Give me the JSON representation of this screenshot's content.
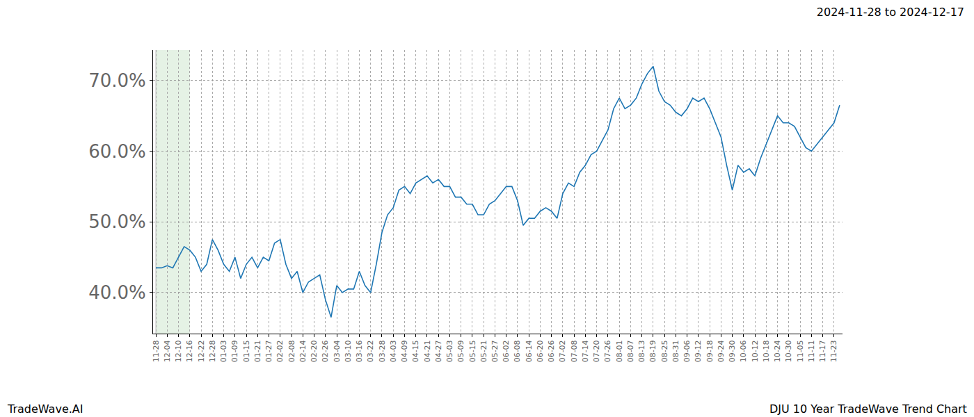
{
  "chart_data": {
    "type": "line",
    "title": "2024-11-28 to 2024-12-17",
    "annotations": [
      "TradeWave.AI",
      "DJU 10 Year TradeWave Trend Chart"
    ],
    "categories": [
      "11-28",
      null,
      "12-04",
      null,
      "12-10",
      null,
      "12-16",
      null,
      "12-22",
      null,
      "12-28",
      null,
      "01-03",
      null,
      "01-09",
      null,
      "01-15",
      null,
      "01-21",
      null,
      "01-27",
      null,
      "02-02",
      null,
      "02-08",
      null,
      "02-14",
      null,
      "02-20",
      null,
      "02-26",
      null,
      "03-04",
      null,
      "03-10",
      null,
      "03-16",
      null,
      "03-22",
      null,
      "03-28",
      null,
      "04-03",
      null,
      "04-09",
      null,
      "04-15",
      null,
      "04-21",
      null,
      "04-27",
      null,
      "05-03",
      null,
      "05-09",
      null,
      "05-15",
      null,
      "05-21",
      null,
      "05-27",
      null,
      "06-02",
      null,
      "06-08",
      null,
      "06-14",
      null,
      "06-20",
      null,
      "06-26",
      null,
      "07-02",
      null,
      "07-08",
      null,
      "07-14",
      null,
      "07-20",
      null,
      "07-26",
      null,
      "08-01",
      null,
      "08-07",
      null,
      "08-13",
      null,
      "08-19",
      null,
      "08-25",
      null,
      "08-31",
      null,
      "09-06",
      null,
      "09-12",
      null,
      "09-18",
      null,
      "09-24",
      null,
      "09-30",
      null,
      "10-06",
      null,
      "10-12",
      null,
      "10-18",
      null,
      "10-24",
      null,
      "10-30",
      null,
      "11-05",
      null,
      "11-11",
      null,
      "11-17",
      null,
      "11-23",
      null
    ],
    "values": [
      43.5,
      43.5,
      43.8,
      43.5,
      45,
      46.5,
      46,
      45,
      43,
      44,
      47.5,
      46,
      44,
      43,
      45,
      42,
      44,
      45,
      43.5,
      45,
      44.5,
      47,
      47.5,
      44,
      42,
      43,
      40,
      41.5,
      42,
      42.5,
      39,
      36.5,
      41,
      40,
      40.5,
      40.5,
      43,
      41,
      40,
      44,
      48.5,
      51,
      52,
      54.5,
      55,
      54,
      55.5,
      56,
      56.5,
      55.5,
      56,
      55,
      55,
      53.5,
      53.5,
      52.5,
      52.5,
      51,
      51,
      52.5,
      53,
      54,
      55,
      55,
      53,
      49.5,
      50.5,
      50.5,
      51.5,
      52,
      51.5,
      50.5,
      54,
      55.5,
      55,
      57,
      58,
      59.5,
      60,
      61.5,
      63,
      66,
      67.5,
      66,
      66.5,
      67.5,
      69.5,
      71,
      72,
      68.5,
      67,
      66.5,
      65.5,
      65,
      66,
      67.5,
      67,
      67.5,
      66,
      64,
      62,
      58,
      54.5,
      58,
      57,
      57.5,
      56.5,
      59,
      61,
      63,
      65,
      64,
      64,
      63.5,
      62,
      60.5,
      60,
      61,
      62,
      63,
      64,
      66.5
    ],
    "color": "#1f77b4",
    "highlight": {
      "start": "11-28",
      "end": "12-16",
      "color": "rgba(0,128,0,0.1)"
    },
    "ylim": [
      34.2,
      74.3
    ],
    "yticks": [
      {
        "value": 40,
        "label": "40.0%"
      },
      {
        "value": 50,
        "label": "50.0%"
      },
      {
        "value": 60,
        "label": "60.0%"
      },
      {
        "value": 70,
        "label": "70.0%"
      }
    ],
    "grid": true
  }
}
